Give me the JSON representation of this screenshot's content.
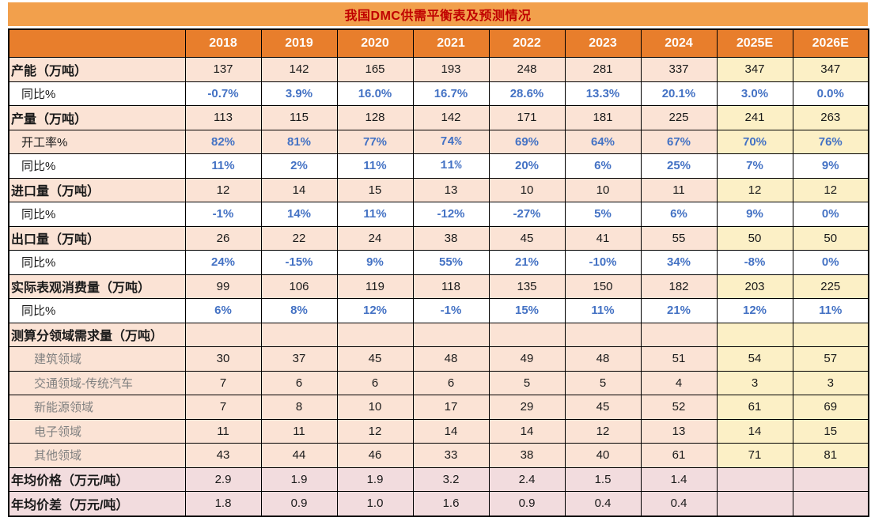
{
  "title": "我国DMC供需平衡表及预测情况",
  "colors": {
    "title_bar": "#F2A04C",
    "title_text": "#C00000",
    "header_bg": "#E87E2C",
    "header_text": "#FFFFFF",
    "pink": "#FBE3D5",
    "yellow": "#FCF0C6",
    "rose": "#F2DCDE",
    "blue": "#4472C4",
    "gray_label": "#808080",
    "black": "#1A1A1A",
    "border": "#000000"
  },
  "table": {
    "corner_label": "",
    "year_columns": [
      "2018",
      "2019",
      "2020",
      "2021",
      "2022",
      "2023",
      "2024",
      "2025E",
      "2026E"
    ],
    "forecast_column_start_index": 7,
    "rows": [
      {
        "label": "产能（万吨）",
        "kind": "main",
        "values": [
          "137",
          "142",
          "165",
          "193",
          "248",
          "281",
          "337",
          "347",
          "347"
        ]
      },
      {
        "label": "同比%",
        "kind": "ratio-white",
        "values": [
          "-0.7%",
          "3.9%",
          "16.0%",
          "16.7%",
          "28.6%",
          "13.3%",
          "20.1%",
          "3.0%",
          "0.0%"
        ]
      },
      {
        "label": "产量（万吨）",
        "kind": "main",
        "values": [
          "113",
          "115",
          "128",
          "142",
          "171",
          "181",
          "225",
          "241",
          "263"
        ]
      },
      {
        "label": "开工率%",
        "kind": "ratio-pink",
        "values": [
          "82%",
          "81%",
          "77%",
          "74%",
          "69%",
          "64%",
          "67%",
          "70%",
          "76%"
        ],
        "alt_font_cols": [
          3
        ]
      },
      {
        "label": "同比%",
        "kind": "ratio-white",
        "values": [
          "11%",
          "2%",
          "11%",
          "11%",
          "20%",
          "6%",
          "25%",
          "7%",
          "9%"
        ],
        "alt_font_cols": [
          3
        ]
      },
      {
        "label": "进口量（万吨）",
        "kind": "main",
        "values": [
          "12",
          "14",
          "15",
          "13",
          "10",
          "10",
          "11",
          "12",
          "12"
        ]
      },
      {
        "label": "同比%",
        "kind": "ratio-white",
        "values": [
          "-1%",
          "14%",
          "11%",
          "-12%",
          "-27%",
          "5%",
          "6%",
          "9%",
          "0%"
        ]
      },
      {
        "label": "出口量（万吨）",
        "kind": "main",
        "values": [
          "26",
          "22",
          "24",
          "38",
          "45",
          "41",
          "55",
          "50",
          "50"
        ]
      },
      {
        "label": "同比%",
        "kind": "ratio-white",
        "values": [
          "24%",
          "-15%",
          "9%",
          "55%",
          "21%",
          "-10%",
          "34%",
          "-8%",
          "0%"
        ]
      },
      {
        "label": "实际表观消费量（万吨）",
        "kind": "main",
        "values": [
          "99",
          "106",
          "119",
          "118",
          "135",
          "150",
          "182",
          "203",
          "225"
        ]
      },
      {
        "label": "同比%",
        "kind": "ratio-white",
        "values": [
          "6%",
          "8%",
          "12%",
          "-1%",
          "15%",
          "11%",
          "21%",
          "12%",
          "11%"
        ]
      },
      {
        "label": "测算分领域需求量（万吨）",
        "kind": "main",
        "values": [
          "",
          "",
          "",
          "",
          "",
          "",
          "",
          "",
          ""
        ]
      },
      {
        "label": "建筑领域",
        "kind": "sub",
        "values": [
          "30",
          "37",
          "45",
          "48",
          "49",
          "48",
          "51",
          "54",
          "57"
        ]
      },
      {
        "label": "交通领域-传统汽车",
        "kind": "sub",
        "values": [
          "7",
          "6",
          "6",
          "6",
          "5",
          "5",
          "4",
          "3",
          "3"
        ]
      },
      {
        "label": "新能源领域",
        "kind": "sub",
        "values": [
          "7",
          "8",
          "10",
          "17",
          "29",
          "45",
          "52",
          "61",
          "69"
        ]
      },
      {
        "label": "电子领域",
        "kind": "sub",
        "values": [
          "11",
          "11",
          "12",
          "14",
          "14",
          "12",
          "13",
          "14",
          "15"
        ]
      },
      {
        "label": "其他领域",
        "kind": "sub",
        "values": [
          "43",
          "44",
          "46",
          "33",
          "38",
          "40",
          "61",
          "71",
          "81"
        ]
      },
      {
        "label": "年均价格（万元/吨）",
        "kind": "price",
        "values": [
          "2.9",
          "1.9",
          "1.9",
          "3.2",
          "2.4",
          "1.5",
          "1.4",
          "",
          ""
        ]
      },
      {
        "label": "年均价差（万元/吨）",
        "kind": "price",
        "values": [
          "1.8",
          "0.9",
          "1.0",
          "1.6",
          "0.9",
          "0.4",
          "0.4",
          "",
          ""
        ]
      }
    ]
  }
}
